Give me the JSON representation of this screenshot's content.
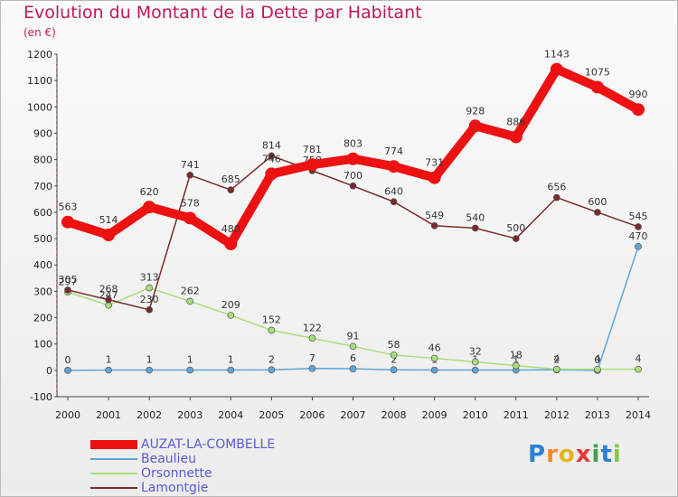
{
  "title": "Evolution du Montant de la Dette par Habitant",
  "subtitle": "(en €)",
  "logo": {
    "text": "ProXiti",
    "letters": [
      "P",
      "r",
      "o",
      "x",
      "i",
      "t",
      "i"
    ],
    "colors": [
      "#2a7fd4",
      "#f28c1e",
      "#e8b321",
      "#e53935",
      "#43a047",
      "#2a7fd4",
      "#8bc34a"
    ]
  },
  "chart_data": {
    "type": "line",
    "title": "Evolution du Montant de la Dette par Habitant",
    "ylabel": "(en €)",
    "xlabel": "",
    "x": [
      "2000",
      "2001",
      "2002",
      "2003",
      "2004",
      "2005",
      "2006",
      "2007",
      "2008",
      "2009",
      "2010",
      "2011",
      "2012",
      "2013",
      "2014"
    ],
    "ylim": [
      -100,
      1200
    ],
    "yticks": [
      -100,
      0,
      100,
      200,
      300,
      400,
      500,
      600,
      700,
      800,
      900,
      1000,
      1100,
      1200
    ],
    "grid": false,
    "legend": "bottom-left",
    "series": [
      {
        "name": "AUZAT-LA-COMBELLE",
        "color": "#ee1111",
        "labelColor": "#5a5ad6",
        "weight": "bold",
        "values": [
          563,
          514,
          620,
          578,
          480,
          746,
          781,
          803,
          774,
          731,
          928,
          886,
          1143,
          1075,
          990
        ]
      },
      {
        "name": "Beaulieu",
        "color": "#5fa4d8",
        "labelColor": "#5a5ad6",
        "weight": "thin",
        "values": [
          0,
          1,
          1,
          1,
          1,
          2,
          7,
          6,
          2,
          1,
          1,
          1,
          2,
          0,
          470
        ]
      },
      {
        "name": "Orsonnette",
        "color": "#a6e07a",
        "labelColor": "#5a5ad6",
        "weight": "thin",
        "values": [
          297,
          247,
          313,
          262,
          209,
          152,
          122,
          91,
          58,
          46,
          32,
          18,
          4,
          4,
          4
        ]
      },
      {
        "name": "Lamontgie",
        "color": "#7a2a2a",
        "labelColor": "#5a5ad6",
        "weight": "thin",
        "values": [
          305,
          268,
          230,
          741,
          685,
          814,
          758,
          700,
          640,
          549,
          540,
          500,
          656,
          600,
          545
        ]
      }
    ]
  }
}
